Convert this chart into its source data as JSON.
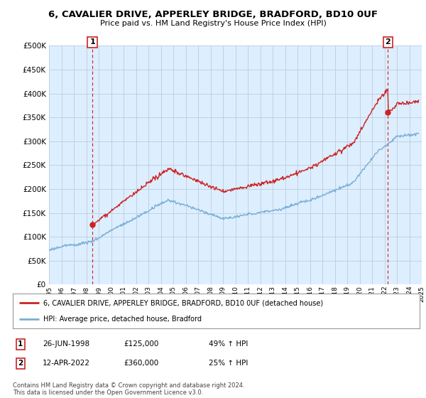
{
  "title": "6, CAVALIER DRIVE, APPERLEY BRIDGE, BRADFORD, BD10 0UF",
  "subtitle": "Price paid vs. HM Land Registry's House Price Index (HPI)",
  "legend_line1": "6, CAVALIER DRIVE, APPERLEY BRIDGE, BRADFORD, BD10 0UF (detached house)",
  "legend_line2": "HPI: Average price, detached house, Bradford",
  "sale1_label": "1",
  "sale1_date": "26-JUN-1998",
  "sale1_price": "£125,000",
  "sale1_hpi": "49% ↑ HPI",
  "sale1_year": 1998.49,
  "sale1_value": 125000,
  "sale2_label": "2",
  "sale2_date": "12-APR-2022",
  "sale2_price": "£360,000",
  "sale2_hpi": "25% ↑ HPI",
  "sale2_year": 2022.28,
  "sale2_value": 360000,
  "hpi_color": "#7aaed4",
  "price_color": "#cc2222",
  "marker_color": "#cc2222",
  "background_color": "#ffffff",
  "chart_bg_color": "#ddeeff",
  "grid_color": "#bbccdd",
  "vline_color": "#cc2222",
  "ylim_min": 0,
  "ylim_max": 500000,
  "ytick_step": 50000,
  "xlim_min": 1995,
  "xlim_max": 2025,
  "footer": "Contains HM Land Registry data © Crown copyright and database right 2024.\nThis data is licensed under the Open Government Licence v3.0."
}
